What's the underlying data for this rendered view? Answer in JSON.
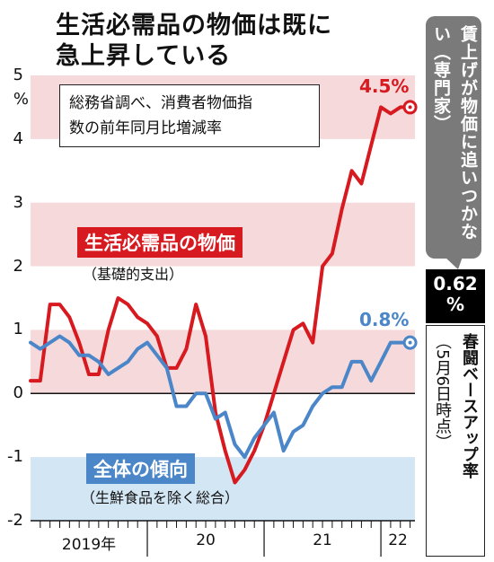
{
  "title": [
    "生活必需品の物価は既に",
    "急上昇している"
  ],
  "source_note": [
    "総務省調べ、消費者物価指",
    "数の前年同月比増減率"
  ],
  "y_unit": "%",
  "series_labels": {
    "red": {
      "name": "生活必需品の物価",
      "sub": "（基礎的支出）",
      "end_value": "4.5%"
    },
    "blue": {
      "name": "全体の傾向",
      "sub": "（生鮮食品を除く総合）",
      "end_value": "0.8%"
    }
  },
  "side": {
    "expert_comment": "賃上げが物価に追いつかない（専門家）",
    "rate": "0.62",
    "rate_unit": "%",
    "rate_label": "春闘ベースアップ率",
    "rate_note": "（5月6日時点）"
  },
  "colors": {
    "red": "#d71920",
    "blue": "#4a86c8",
    "band_pink": "#f6d9da",
    "band_blue": "#d3e6f4",
    "grey": "#7a7a7a"
  },
  "chart_data": {
    "type": "line",
    "ylim": [
      -2,
      5
    ],
    "yticks": [
      "-2",
      "-1",
      "0",
      "1",
      "2",
      "3",
      "4",
      "5"
    ],
    "x_periods": [
      {
        "label": "2019年",
        "start": 0,
        "end": 12
      },
      {
        "label": "20",
        "start": 12,
        "end": 24
      },
      {
        "label": "21",
        "start": 24,
        "end": 36
      },
      {
        "label": "22",
        "start": 36,
        "end": 40
      }
    ],
    "x_unit": "month index (0 = Jan 2019)",
    "series": [
      {
        "name": "生活必需品の物価",
        "color": "#d71920",
        "x": [
          0,
          1,
          2,
          3,
          4,
          5,
          6,
          7,
          8,
          9,
          10,
          11,
          12,
          13,
          14,
          15,
          16,
          17,
          18,
          19,
          20,
          21,
          22,
          23,
          24,
          25,
          26,
          27,
          28,
          29,
          30,
          31,
          32,
          33,
          34,
          35,
          36,
          37,
          38,
          39
        ],
        "values": [
          0.2,
          0.2,
          1.4,
          1.4,
          1.2,
          0.8,
          0.3,
          0.3,
          1.0,
          1.5,
          1.4,
          1.2,
          1.1,
          0.9,
          0.4,
          0.4,
          0.7,
          1.4,
          0.9,
          -0.3,
          -0.9,
          -1.4,
          -1.2,
          -0.9,
          -0.5,
          0.0,
          0.5,
          1.0,
          1.1,
          0.8,
          2.0,
          2.2,
          2.9,
          3.5,
          3.3,
          3.9,
          4.5,
          4.4,
          4.5,
          4.5
        ]
      },
      {
        "name": "全体の傾向",
        "color": "#4a86c8",
        "x": [
          0,
          1,
          2,
          3,
          4,
          5,
          6,
          7,
          8,
          9,
          10,
          11,
          12,
          13,
          14,
          15,
          16,
          17,
          18,
          19,
          20,
          21,
          22,
          23,
          24,
          25,
          26,
          27,
          28,
          29,
          30,
          31,
          32,
          33,
          34,
          35,
          36,
          37,
          38,
          39
        ],
        "values": [
          0.8,
          0.7,
          0.8,
          0.9,
          0.8,
          0.6,
          0.6,
          0.5,
          0.3,
          0.4,
          0.5,
          0.7,
          0.8,
          0.6,
          0.4,
          -0.2,
          -0.2,
          0.0,
          0.0,
          -0.4,
          -0.3,
          -0.8,
          -1.0,
          -0.7,
          -0.5,
          -0.3,
          -0.9,
          -0.6,
          -0.5,
          -0.2,
          0.0,
          0.1,
          0.1,
          0.5,
          0.5,
          0.2,
          0.5,
          0.8,
          0.8,
          0.8
        ]
      }
    ]
  }
}
